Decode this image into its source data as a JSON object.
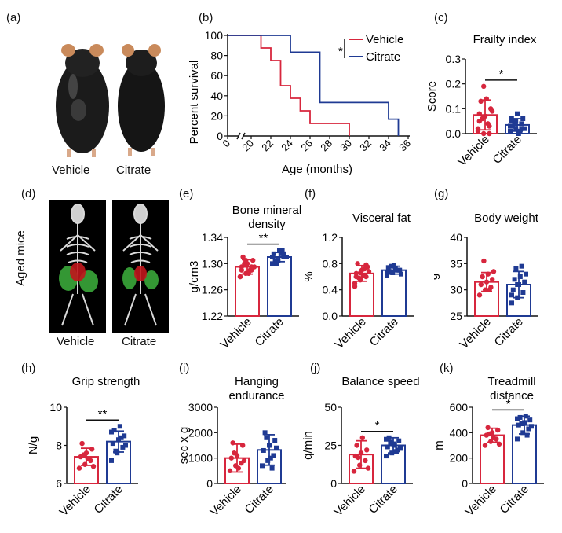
{
  "panel_labels": [
    "(a)",
    "(b)",
    "(c)",
    "(d)",
    "(e)",
    "(f)",
    "(g)",
    "(h)",
    "(i)",
    "(j)",
    "(k)"
  ],
  "photo_a": {
    "left_label": "Vehicle",
    "right_label": "Citrate"
  },
  "photo_d": {
    "side_label": "Aged mice",
    "left_label": "Vehicle",
    "right_label": "Citrate"
  },
  "colors": {
    "vehicle": "#d7263d",
    "citrate": "#1f3a93",
    "fur": "#1b1b1b",
    "skeleton": "#d9d9d9",
    "fat_red": "#c0161c",
    "fat_green": "#3db13d"
  },
  "chart_data": [
    {
      "panel": "b",
      "type": "line",
      "step": true,
      "xlabel": "Age (months)",
      "ylabel": "Percent survival",
      "x_ticks": [
        "0",
        "20",
        "22",
        "24",
        "26",
        "28",
        "30",
        "32",
        "34",
        "36"
      ],
      "y_ticks": [
        "0",
        "20",
        "40",
        "60",
        "80",
        "100"
      ],
      "xlim": [
        18,
        36
      ],
      "ylim": [
        0,
        100
      ],
      "axis_break": true,
      "significance": "*",
      "legend_position": "top-right",
      "series": [
        {
          "name": "Vehicle",
          "color": "#d7263d",
          "x": [
            18,
            21,
            22,
            23,
            24,
            25,
            26,
            30
          ],
          "y": [
            100,
            87.5,
            75,
            50,
            37.5,
            25,
            12.5,
            0
          ]
        },
        {
          "name": "Citrate",
          "color": "#1f3a93",
          "x": [
            18,
            22,
            24,
            26,
            27,
            34,
            35
          ],
          "y": [
            100,
            100,
            83.3,
            83.3,
            33.3,
            16.7,
            0
          ]
        }
      ]
    },
    {
      "panel": "c",
      "type": "bar",
      "title": "Frailty index",
      "ylabel": "Score",
      "categories": [
        "Vehicle",
        "Citrate"
      ],
      "ylim": [
        0,
        0.3
      ],
      "y_ticks": [
        "0.0",
        "0.1",
        "0.2",
        "0.3"
      ],
      "significance": "*",
      "series": [
        {
          "name": "Vehicle",
          "color": "#d7263d",
          "mean": 0.075,
          "sd": 0.06,
          "points": [
            0.02,
            0.0,
            0.03,
            0.05,
            0.07,
            0.1,
            0.13,
            0.14,
            0.09,
            0.06,
            0.04,
            0.01,
            0.19,
            0.0,
            0.08
          ]
        },
        {
          "name": "Citrate",
          "color": "#1f3a93",
          "mean": 0.035,
          "sd": 0.025,
          "points": [
            0.01,
            0.02,
            0.04,
            0.05,
            0.08,
            0.06,
            0.03,
            0.0,
            0.02,
            0.04,
            0.01,
            0.03,
            0.05,
            0.02,
            0.06
          ]
        }
      ]
    },
    {
      "panel": "e",
      "type": "bar",
      "title": "Bone mineral density",
      "ylabel": "g/cm3",
      "categories": [
        "Vehicle",
        "Citrate"
      ],
      "ylim": [
        1.22,
        1.34
      ],
      "y_ticks": [
        "1.22",
        "1.26",
        "1.30",
        "1.34"
      ],
      "significance": "**",
      "series": [
        {
          "name": "Vehicle",
          "color": "#d7263d",
          "mean": 1.295,
          "sd": 0.011,
          "points": [
            1.28,
            1.285,
            1.29,
            1.295,
            1.3,
            1.305,
            1.31,
            1.285,
            1.295,
            1.3,
            1.29,
            1.28,
            1.305,
            1.295,
            1.29
          ]
        },
        {
          "name": "Citrate",
          "color": "#1f3a93",
          "mean": 1.31,
          "sd": 0.007,
          "points": [
            1.3,
            1.305,
            1.31,
            1.315,
            1.32,
            1.31,
            1.305,
            1.315,
            1.31,
            1.3,
            1.32,
            1.31,
            1.305,
            1.315
          ]
        }
      ]
    },
    {
      "panel": "f",
      "type": "bar",
      "title": "Visceral fat",
      "ylabel": "%",
      "categories": [
        "Vehicle",
        "Citrate"
      ],
      "ylim": [
        0.0,
        1.2
      ],
      "y_ticks": [
        "0.0",
        "0.4",
        "0.8",
        "1.2"
      ],
      "series": [
        {
          "name": "Vehicle",
          "color": "#d7263d",
          "mean": 0.65,
          "sd": 0.12,
          "points": [
            0.5,
            0.55,
            0.6,
            0.65,
            0.7,
            0.75,
            0.8,
            0.62,
            0.68,
            0.58,
            0.72,
            0.45,
            0.66,
            0.78,
            0.6
          ]
        },
        {
          "name": "Citrate",
          "color": "#1f3a93",
          "mean": 0.7,
          "sd": 0.06,
          "points": [
            0.62,
            0.66,
            0.7,
            0.74,
            0.78,
            0.7,
            0.68,
            0.72,
            0.64,
            0.76,
            0.7,
            0.66
          ]
        }
      ]
    },
    {
      "panel": "g",
      "type": "bar",
      "title": "Body weight",
      "ylabel": "g",
      "categories": [
        "Vehicle",
        "Citrate"
      ],
      "ylim": [
        25,
        40
      ],
      "y_ticks": [
        "25",
        "30",
        "35",
        "40"
      ],
      "series": [
        {
          "name": "Vehicle",
          "color": "#d7263d",
          "mean": 31.5,
          "sd": 1.8,
          "points": [
            29,
            30,
            30.5,
            31,
            31.5,
            32,
            32.5,
            33,
            33.5,
            35.5,
            30
          ]
        },
        {
          "name": "Citrate",
          "color": "#1f3a93",
          "mean": 31.0,
          "sd": 2.5,
          "points": [
            27.5,
            28.5,
            29.5,
            30,
            31,
            31.5,
            32,
            32.5,
            33,
            34,
            34.5,
            29,
            31
          ]
        }
      ]
    },
    {
      "panel": "h",
      "type": "bar",
      "title": "Grip strength",
      "ylabel": "N/g",
      "categories": [
        "Vehicle",
        "Citrate"
      ],
      "ylim": [
        6,
        10
      ],
      "y_ticks": [
        "6",
        "8",
        "10"
      ],
      "significance": "**",
      "series": [
        {
          "name": "Vehicle",
          "color": "#d7263d",
          "mean": 7.4,
          "sd": 0.45,
          "points": [
            6.8,
            7.0,
            7.2,
            7.4,
            7.6,
            7.8,
            8.1,
            7.3,
            6.9,
            7.5
          ]
        },
        {
          "name": "Citrate",
          "color": "#1f3a93",
          "mean": 8.2,
          "sd": 0.55,
          "points": [
            7.2,
            7.6,
            7.9,
            8.1,
            8.3,
            8.5,
            8.8,
            9.0,
            8.0,
            7.7,
            8.4,
            8.7
          ]
        }
      ]
    },
    {
      "panel": "i",
      "type": "bar",
      "title": "Hanging endurance",
      "ylabel": "sec x g",
      "categories": [
        "Vehicle",
        "Citrate"
      ],
      "ylim": [
        0,
        3000
      ],
      "y_ticks": [
        "0",
        "1000",
        "2000",
        "3000"
      ],
      "series": [
        {
          "name": "Vehicle",
          "color": "#d7263d",
          "mean": 1000,
          "sd": 550,
          "points": [
            500,
            700,
            800,
            1000,
            1100,
            1500,
            1600,
            600,
            900,
            1200
          ]
        },
        {
          "name": "Citrate",
          "color": "#1f3a93",
          "mean": 1320,
          "sd": 600,
          "points": [
            700,
            900,
            1100,
            1300,
            1500,
            1700,
            2000,
            1000,
            1400,
            1800,
            600
          ]
        }
      ]
    },
    {
      "panel": "j",
      "type": "bar",
      "title": "Balance speed",
      "ylabel": "q/min",
      "categories": [
        "Vehicle",
        "Citrate"
      ],
      "ylim": [
        0,
        50
      ],
      "y_ticks": [
        "0",
        "25",
        "50"
      ],
      "significance": "*",
      "series": [
        {
          "name": "Vehicle",
          "color": "#d7263d",
          "mean": 19,
          "sd": 9,
          "points": [
            8,
            12,
            15,
            18,
            20,
            22,
            25,
            30,
            10,
            17
          ]
        },
        {
          "name": "Citrate",
          "color": "#1f3a93",
          "mean": 25,
          "sd": 5,
          "points": [
            18,
            20,
            22,
            24,
            26,
            28,
            30,
            25,
            23,
            27,
            21,
            29
          ]
        }
      ]
    },
    {
      "panel": "k",
      "type": "bar",
      "title": "Treadmill distance",
      "ylabel": "m",
      "categories": [
        "Vehicle",
        "Citrate"
      ],
      "ylim": [
        0,
        600
      ],
      "y_ticks": [
        "0",
        "200",
        "400",
        "600"
      ],
      "significance": "*",
      "series": [
        {
          "name": "Vehicle",
          "color": "#d7263d",
          "mean": 380,
          "sd": 55,
          "points": [
            300,
            330,
            350,
            380,
            400,
            420,
            440,
            360,
            310,
            390
          ]
        },
        {
          "name": "Citrate",
          "color": "#1f3a93",
          "mean": 460,
          "sd": 70,
          "points": [
            350,
            400,
            430,
            460,
            480,
            500,
            520,
            530,
            450,
            470,
            380,
            510
          ]
        }
      ]
    }
  ]
}
